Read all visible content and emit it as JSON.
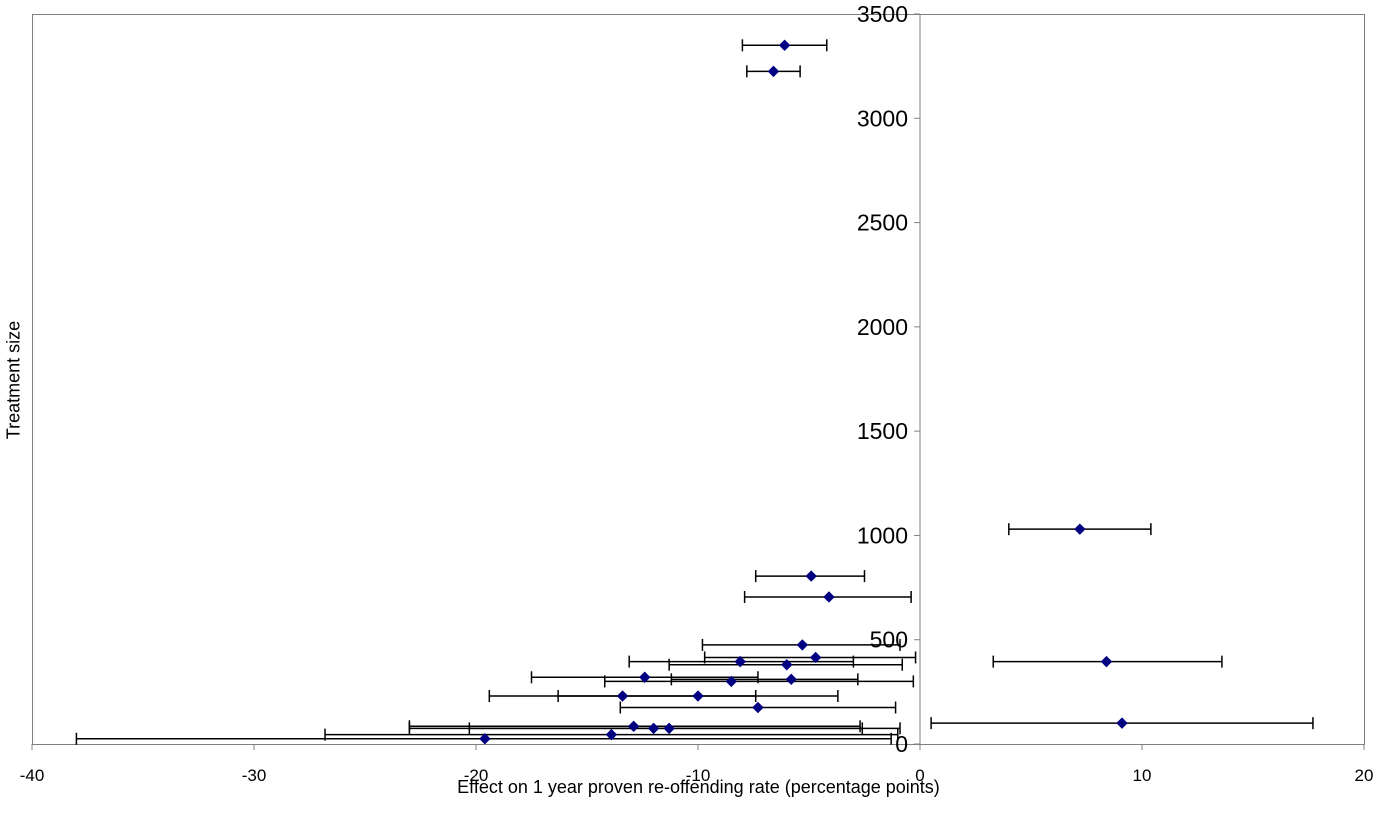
{
  "chart_data": {
    "type": "scatter",
    "title": "",
    "xlabel": "Effect on 1 year proven re-offending rate (percentage points)",
    "ylabel": "Treatment size",
    "xlim": [
      -40,
      20
    ],
    "ylim": [
      0,
      3500
    ],
    "xticks": [
      "-40",
      "-30",
      "-20",
      "-10",
      "0",
      "10",
      "20"
    ],
    "yticks": [
      "0",
      "500",
      "1000",
      "1500",
      "2000",
      "2500",
      "3000",
      "3500"
    ],
    "grid": false,
    "legend": "none",
    "marker": "diamond",
    "marker_color": "#000080",
    "points": [
      {
        "x": -6.1,
        "y": 3350,
        "lo": -8.0,
        "hi": -4.2
      },
      {
        "x": -6.6,
        "y": 3225,
        "lo": -7.8,
        "hi": -5.4
      },
      {
        "x": 7.2,
        "y": 1030,
        "lo": 4.0,
        "hi": 10.4
      },
      {
        "x": -4.9,
        "y": 805,
        "lo": -7.4,
        "hi": -2.5
      },
      {
        "x": -4.1,
        "y": 705,
        "lo": -7.9,
        "hi": -0.4
      },
      {
        "x": -5.3,
        "y": 475,
        "lo": -9.8,
        "hi": -0.9
      },
      {
        "x": -4.7,
        "y": 415,
        "lo": -9.7,
        "hi": -0.2
      },
      {
        "x": 8.4,
        "y": 395,
        "lo": 3.3,
        "hi": 13.6
      },
      {
        "x": -8.1,
        "y": 395,
        "lo": -13.1,
        "hi": -3.0
      },
      {
        "x": -6.0,
        "y": 380,
        "lo": -11.3,
        "hi": -0.8
      },
      {
        "x": -12.4,
        "y": 320,
        "lo": -17.5,
        "hi": -7.3
      },
      {
        "x": -5.8,
        "y": 310,
        "lo": -11.2,
        "hi": -2.8
      },
      {
        "x": -8.5,
        "y": 300,
        "lo": -14.2,
        "hi": -0.3
      },
      {
        "x": -13.4,
        "y": 230,
        "lo": -19.4,
        "hi": -7.4
      },
      {
        "x": -10.0,
        "y": 230,
        "lo": -16.3,
        "hi": -3.7
      },
      {
        "x": -7.3,
        "y": 175,
        "lo": -13.5,
        "hi": -1.1
      },
      {
        "x": 9.1,
        "y": 100,
        "lo": 0.5,
        "hi": 17.7
      },
      {
        "x": -12.9,
        "y": 85,
        "lo": -23.0,
        "hi": -2.7
      },
      {
        "x": -12.0,
        "y": 75,
        "lo": -23.0,
        "hi": -2.6
      },
      {
        "x": -11.3,
        "y": 75,
        "lo": -20.3,
        "hi": -0.9
      },
      {
        "x": -13.9,
        "y": 45,
        "lo": -26.8,
        "hi": -1.0
      },
      {
        "x": -19.6,
        "y": 25,
        "lo": -38.0,
        "hi": -1.3
      }
    ]
  }
}
